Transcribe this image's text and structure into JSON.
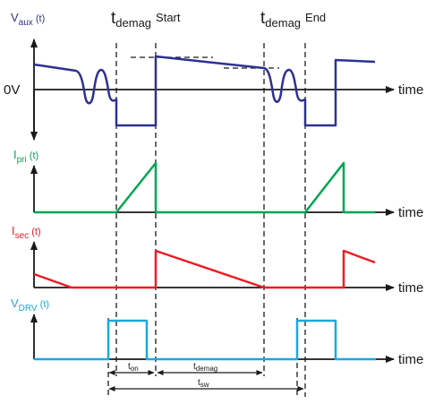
{
  "colors": {
    "vaux": "#2e3191",
    "ipri": "#00a651",
    "isec": "#ed1c24",
    "vdrv": "#1ba9e0",
    "axis": "#1a1a1a"
  },
  "signals": {
    "vaux": {
      "main": "V",
      "sub": "aux",
      "suffix": " (t)"
    },
    "ipri": {
      "main": "I",
      "sub": "pri",
      "suffix": " (t)"
    },
    "isec": {
      "main": "I",
      "sub": "sec",
      "suffix": " (t)"
    },
    "vdrv": {
      "main": "V",
      "sub": "DRV",
      "suffix": " (t)"
    }
  },
  "zero_label": "0V",
  "axis_label": "time",
  "markers": {
    "start": {
      "t": "t",
      "sub": "demag",
      "word": "Start"
    },
    "end": {
      "t": "t",
      "sub": "demag",
      "word": "End"
    }
  },
  "dimensions": {
    "ton": {
      "t": "t",
      "sub": "on"
    },
    "tdemag": {
      "t": "t",
      "sub": "demag"
    },
    "tsw": {
      "t": "t",
      "sub": "sw"
    }
  }
}
